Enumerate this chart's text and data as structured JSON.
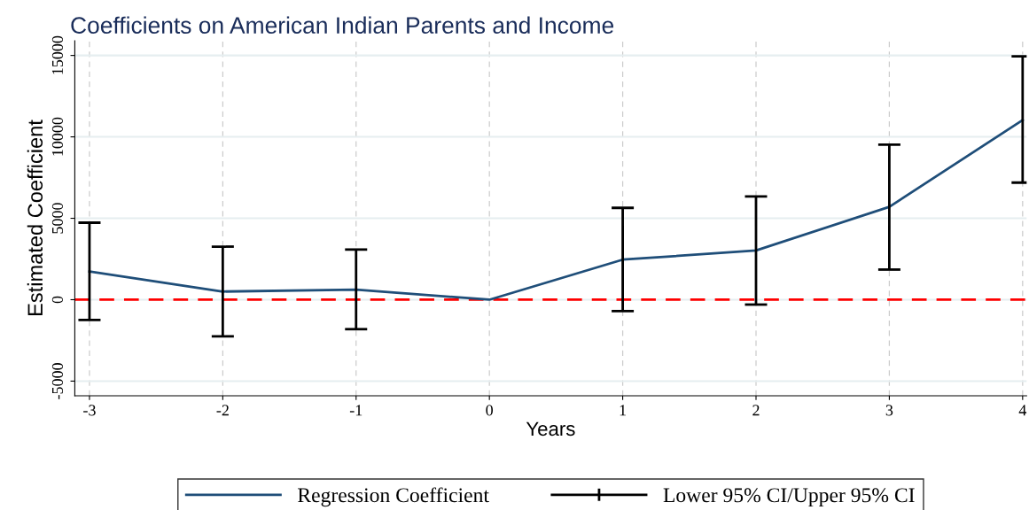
{
  "chart_data": {
    "type": "line",
    "title": "Coefficients on American Indian Parents and Income",
    "xlabel": "Years",
    "ylabel": "Estimated Coefficient",
    "x": [
      -3,
      -2,
      -1,
      0,
      1,
      2,
      3,
      4
    ],
    "series": [
      {
        "name": "Regression Coefficient",
        "color": "#1f4e79",
        "values": [
          1730,
          500,
          620,
          0,
          2460,
          3020,
          5700,
          11030
        ],
        "errors": [
          [
            -1250,
            4730
          ],
          [
            -2250,
            3260
          ],
          [
            -1810,
            3080
          ],
          null,
          [
            -700,
            5640
          ],
          [
            -300,
            6340
          ],
          [
            1850,
            9520
          ],
          [
            7190,
            14940
          ]
        ]
      }
    ],
    "annotations": [
      "Lower 95% CI/Upper 95% CI"
    ],
    "xlim": [
      -3.11,
      4.03
    ],
    "xticks": [
      -3,
      -2,
      -1,
      0,
      1,
      2,
      3,
      4
    ],
    "ylim": [
      -5900,
      15900
    ],
    "yticks": [
      -5000,
      0,
      5000,
      10000,
      15000
    ],
    "ref_lines": [
      {
        "axis": "y",
        "value": 0,
        "color": "#ff0000",
        "line_style": "dashed"
      }
    ],
    "grid": true,
    "legend": "bottom",
    "marker": "none",
    "line_style": "solid"
  }
}
